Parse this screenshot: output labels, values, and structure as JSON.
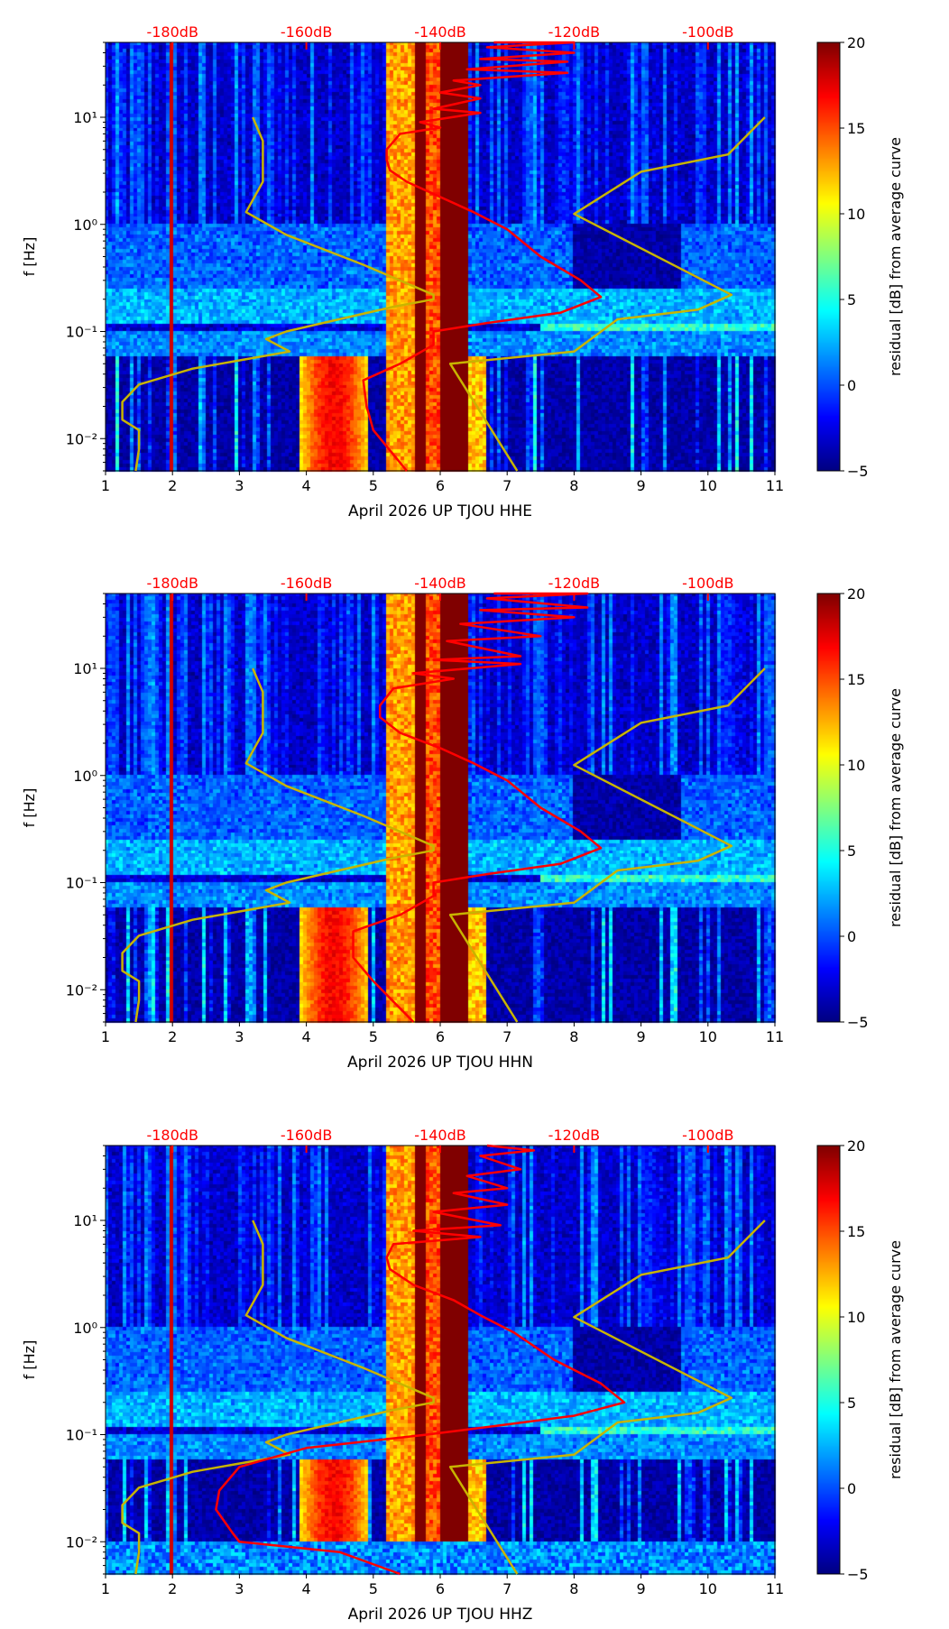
{
  "chart_data": [
    {
      "type": "heatmap",
      "xlabel": "April 2026 UP TJOU  HHE",
      "ylabel": "f [Hz]",
      "xlim": [
        1,
        11
      ],
      "ylim": [
        0.005,
        50
      ],
      "yscale": "log",
      "xticks": [
        "1",
        "2",
        "3",
        "4",
        "5",
        "6",
        "7",
        "8",
        "9",
        "10",
        "11"
      ],
      "yticks": [
        {
          "value": 0.01,
          "label": "10⁻²"
        },
        {
          "value": 0.1,
          "label": "10⁻¹"
        },
        {
          "value": 1,
          "label": "10⁰"
        },
        {
          "value": 10,
          "label": "10¹"
        }
      ],
      "top_labels": [
        {
          "x": 2,
          "label": "-180dB"
        },
        {
          "x": 4,
          "label": "-160dB"
        },
        {
          "x": 6,
          "label": "-140dB"
        },
        {
          "x": 8,
          "label": "-120dB"
        },
        {
          "x": 10,
          "label": "-100dB"
        }
      ],
      "colorbar": {
        "label": "residual [dB] from average curve",
        "range": [
          -5,
          20
        ],
        "ticks": [
          "−5",
          "0",
          "5",
          "10",
          "15",
          "20"
        ]
      },
      "series": [
        {
          "name": "percentile-low",
          "color": "#c8b400",
          "points": [
            [
              3.2,
              10
            ],
            [
              3.35,
              6
            ],
            [
              3.35,
              2.5
            ],
            [
              3.1,
              1.3
            ],
            [
              3.7,
              0.8
            ],
            [
              4.85,
              0.42
            ],
            [
              5.9,
              0.22
            ],
            [
              5.9,
              0.2
            ],
            [
              5.3,
              0.17
            ],
            [
              3.7,
              0.1
            ],
            [
              3.4,
              0.085
            ],
            [
              3.75,
              0.065
            ],
            [
              2.3,
              0.045
            ],
            [
              1.5,
              0.032
            ],
            [
              1.25,
              0.022
            ],
            [
              1.25,
              0.015
            ],
            [
              1.5,
              0.012
            ],
            [
              1.5,
              0.008
            ],
            [
              1.45,
              0.005
            ]
          ]
        },
        {
          "name": "percentile-high",
          "color": "#c8b400",
          "points": [
            [
              10.85,
              10
            ],
            [
              10.3,
              4.5
            ],
            [
              9,
              3.1
            ],
            [
              8,
              1.25
            ],
            [
              10.35,
              0.22
            ],
            [
              9.85,
              0.16
            ],
            [
              8.65,
              0.13
            ],
            [
              8,
              0.065
            ],
            [
              6.15,
              0.05
            ],
            [
              7.15,
              0.005
            ]
          ]
        },
        {
          "name": "average-curve",
          "color": "#ff0000",
          "points": [
            [
              6.8,
              50
            ],
            [
              8,
              50
            ],
            [
              6.7,
              45
            ],
            [
              8,
              40
            ],
            [
              6.6,
              35
            ],
            [
              7.9,
              33
            ],
            [
              6.4,
              28
            ],
            [
              7.9,
              26
            ],
            [
              6.2,
              22
            ],
            [
              6.6,
              20
            ],
            [
              6.0,
              17
            ],
            [
              6.6,
              15
            ],
            [
              5.9,
              12
            ],
            [
              6.6,
              11
            ],
            [
              5.7,
              9
            ],
            [
              6.0,
              8
            ],
            [
              5.4,
              7
            ],
            [
              5.2,
              5
            ],
            [
              5.2,
              4
            ],
            [
              5.25,
              3.2
            ],
            [
              5.5,
              2.5
            ],
            [
              6.0,
              1.8
            ],
            [
              6.5,
              1.3
            ],
            [
              7.0,
              0.9
            ],
            [
              7.5,
              0.5
            ],
            [
              8.1,
              0.3
            ],
            [
              8.4,
              0.21
            ],
            [
              7.8,
              0.15
            ],
            [
              6.7,
              0.12
            ],
            [
              5.9,
              0.1
            ],
            [
              5.9,
              0.075
            ],
            [
              5.4,
              0.05
            ],
            [
              4.85,
              0.035
            ],
            [
              4.9,
              0.02
            ],
            [
              5.0,
              0.012
            ],
            [
              5.5,
              0.005
            ]
          ]
        }
      ]
    },
    {
      "type": "heatmap",
      "xlabel": "April 2026 UP TJOU  HHN",
      "ylabel": "f [Hz]",
      "xlim": [
        1,
        11
      ],
      "ylim": [
        0.005,
        50
      ],
      "yscale": "log",
      "xticks": [
        "1",
        "2",
        "3",
        "4",
        "5",
        "6",
        "7",
        "8",
        "9",
        "10",
        "11"
      ],
      "yticks": [
        {
          "value": 0.01,
          "label": "10⁻²"
        },
        {
          "value": 0.1,
          "label": "10⁻¹"
        },
        {
          "value": 1,
          "label": "10⁰"
        },
        {
          "value": 10,
          "label": "10¹"
        }
      ],
      "top_labels": [
        {
          "x": 2,
          "label": "-180dB"
        },
        {
          "x": 4,
          "label": "-160dB"
        },
        {
          "x": 6,
          "label": "-140dB"
        },
        {
          "x": 8,
          "label": "-120dB"
        },
        {
          "x": 10,
          "label": "-100dB"
        }
      ],
      "colorbar": {
        "label": "residual [dB] from average curve",
        "range": [
          -5,
          20
        ],
        "ticks": [
          "−5",
          "0",
          "5",
          "10",
          "15",
          "20"
        ]
      },
      "series": [
        {
          "name": "percentile-low",
          "color": "#c8b400",
          "points": [
            [
              3.2,
              10
            ],
            [
              3.35,
              6
            ],
            [
              3.35,
              2.5
            ],
            [
              3.1,
              1.3
            ],
            [
              3.7,
              0.8
            ],
            [
              4.85,
              0.42
            ],
            [
              5.9,
              0.22
            ],
            [
              5.9,
              0.2
            ],
            [
              5.3,
              0.17
            ],
            [
              3.7,
              0.1
            ],
            [
              3.4,
              0.085
            ],
            [
              3.75,
              0.065
            ],
            [
              2.3,
              0.045
            ],
            [
              1.5,
              0.032
            ],
            [
              1.25,
              0.022
            ],
            [
              1.25,
              0.015
            ],
            [
              1.5,
              0.012
            ],
            [
              1.5,
              0.008
            ],
            [
              1.45,
              0.005
            ]
          ]
        },
        {
          "name": "percentile-high",
          "color": "#c8b400",
          "points": [
            [
              10.85,
              10
            ],
            [
              10.3,
              4.5
            ],
            [
              9,
              3.1
            ],
            [
              8,
              1.25
            ],
            [
              10.35,
              0.22
            ],
            [
              9.85,
              0.16
            ],
            [
              8.65,
              0.13
            ],
            [
              8,
              0.065
            ],
            [
              6.15,
              0.05
            ],
            [
              7.15,
              0.005
            ]
          ]
        },
        {
          "name": "average-curve",
          "color": "#ff0000",
          "points": [
            [
              6.8,
              50
            ],
            [
              8.2,
              50
            ],
            [
              6.7,
              45
            ],
            [
              8.2,
              37
            ],
            [
              6.6,
              35
            ],
            [
              8,
              30
            ],
            [
              6.3,
              26
            ],
            [
              7.5,
              20
            ],
            [
              6.1,
              18
            ],
            [
              7.2,
              13
            ],
            [
              5.9,
              12
            ],
            [
              7.2,
              11
            ],
            [
              5.6,
              9
            ],
            [
              6.2,
              8
            ],
            [
              5.3,
              6.5
            ],
            [
              5.1,
              4.5
            ],
            [
              5.1,
              3.5
            ],
            [
              5.4,
              2.5
            ],
            [
              6.0,
              1.8
            ],
            [
              6.5,
              1.3
            ],
            [
              7.0,
              0.9
            ],
            [
              7.5,
              0.5
            ],
            [
              8.1,
              0.3
            ],
            [
              8.4,
              0.21
            ],
            [
              7.8,
              0.15
            ],
            [
              6.7,
              0.12
            ],
            [
              5.9,
              0.1
            ],
            [
              5.9,
              0.075
            ],
            [
              5.4,
              0.05
            ],
            [
              4.7,
              0.035
            ],
            [
              4.7,
              0.02
            ],
            [
              5.0,
              0.012
            ],
            [
              5.6,
              0.005
            ]
          ]
        }
      ]
    },
    {
      "type": "heatmap",
      "xlabel": "April 2026 UP TJOU  HHZ",
      "ylabel": "f [Hz]",
      "xlim": [
        1,
        11
      ],
      "ylim": [
        0.005,
        50
      ],
      "yscale": "log",
      "xticks": [
        "1",
        "2",
        "3",
        "4",
        "5",
        "6",
        "7",
        "8",
        "9",
        "10",
        "11"
      ],
      "yticks": [
        {
          "value": 0.01,
          "label": "10⁻²"
        },
        {
          "value": 0.1,
          "label": "10⁻¹"
        },
        {
          "value": 1,
          "label": "10⁰"
        },
        {
          "value": 10,
          "label": "10¹"
        }
      ],
      "top_labels": [
        {
          "x": 2,
          "label": "-180dB"
        },
        {
          "x": 4,
          "label": "-160dB"
        },
        {
          "x": 6,
          "label": "-140dB"
        },
        {
          "x": 8,
          "label": "-120dB"
        },
        {
          "x": 10,
          "label": "-100dB"
        }
      ],
      "colorbar": {
        "label": "residual [dB] from average curve",
        "range": [
          -5,
          20
        ],
        "ticks": [
          "−5",
          "0",
          "5",
          "10",
          "15",
          "20"
        ]
      },
      "series": [
        {
          "name": "percentile-low",
          "color": "#c8b400",
          "points": [
            [
              3.2,
              10
            ],
            [
              3.35,
              6
            ],
            [
              3.35,
              2.5
            ],
            [
              3.1,
              1.3
            ],
            [
              3.7,
              0.8
            ],
            [
              4.85,
              0.42
            ],
            [
              5.9,
              0.22
            ],
            [
              5.9,
              0.2
            ],
            [
              5.3,
              0.17
            ],
            [
              3.7,
              0.1
            ],
            [
              3.4,
              0.085
            ],
            [
              3.75,
              0.065
            ],
            [
              2.3,
              0.045
            ],
            [
              1.5,
              0.032
            ],
            [
              1.25,
              0.022
            ],
            [
              1.25,
              0.015
            ],
            [
              1.5,
              0.012
            ],
            [
              1.5,
              0.008
            ],
            [
              1.45,
              0.005
            ]
          ]
        },
        {
          "name": "percentile-high",
          "color": "#c8b400",
          "points": [
            [
              10.85,
              10
            ],
            [
              10.3,
              4.5
            ],
            [
              9,
              3.1
            ],
            [
              8,
              1.25
            ],
            [
              10.35,
              0.22
            ],
            [
              9.85,
              0.16
            ],
            [
              8.65,
              0.13
            ],
            [
              8,
              0.065
            ],
            [
              6.15,
              0.05
            ],
            [
              7.15,
              0.005
            ]
          ]
        },
        {
          "name": "average-curve",
          "color": "#ff0000",
          "points": [
            [
              6.7,
              50
            ],
            [
              7.4,
              45
            ],
            [
              6.6,
              40
            ],
            [
              7.2,
              30
            ],
            [
              6.4,
              26
            ],
            [
              7.0,
              20
            ],
            [
              6.2,
              18
            ],
            [
              7.0,
              14
            ],
            [
              5.9,
              12
            ],
            [
              6.9,
              9
            ],
            [
              5.6,
              8
            ],
            [
              6.6,
              7
            ],
            [
              5.3,
              6
            ],
            [
              5.2,
              4.5
            ],
            [
              5.25,
              3.5
            ],
            [
              5.6,
              2.5
            ],
            [
              6.2,
              1.8
            ],
            [
              6.6,
              1.3
            ],
            [
              7.1,
              0.9
            ],
            [
              7.7,
              0.5
            ],
            [
              8.4,
              0.3
            ],
            [
              8.75,
              0.2
            ],
            [
              8.0,
              0.15
            ],
            [
              6.8,
              0.12
            ],
            [
              5.8,
              0.1
            ],
            [
              4.0,
              0.075
            ],
            [
              3.0,
              0.05
            ],
            [
              2.7,
              0.03
            ],
            [
              2.65,
              0.02
            ],
            [
              2.9,
              0.012
            ],
            [
              3.0,
              0.01
            ],
            [
              4.5,
              0.008
            ],
            [
              5.4,
              0.005
            ]
          ]
        }
      ]
    }
  ]
}
